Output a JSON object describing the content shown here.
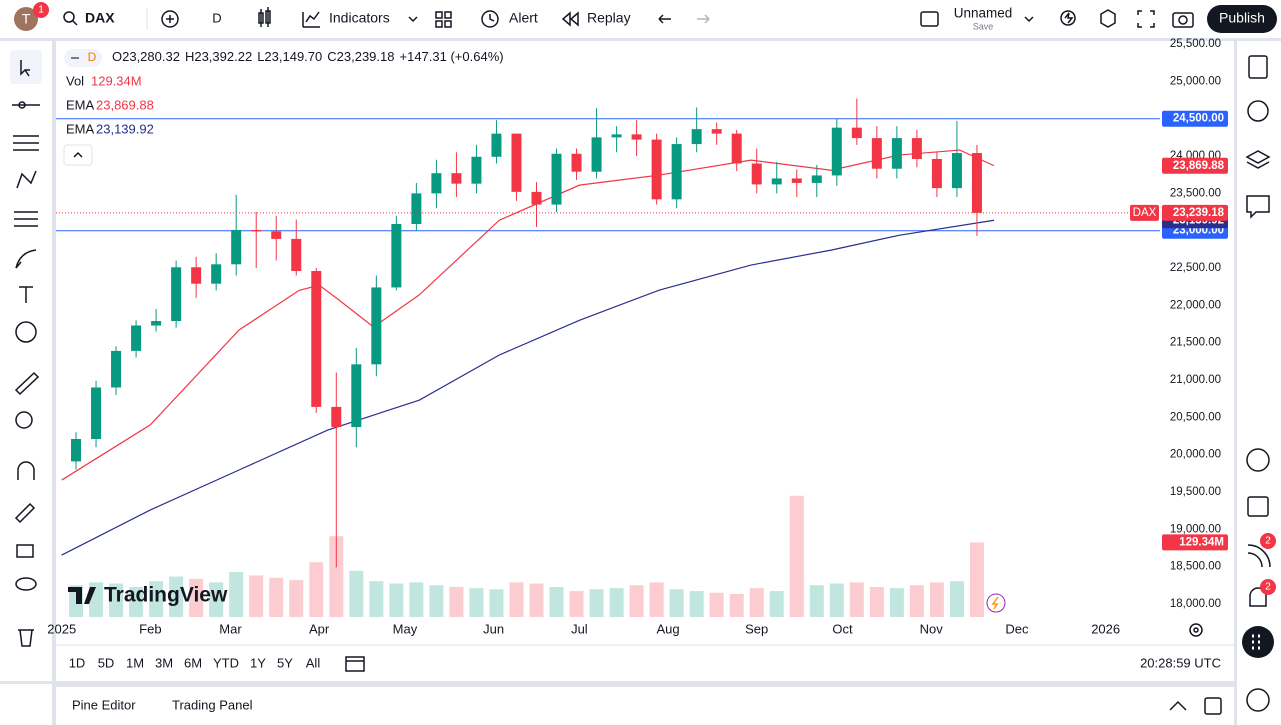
{
  "toolbar": {
    "avatar": "T",
    "badge": "1",
    "symbol": "DAX",
    "interval": "D",
    "indicators": "Indicators",
    "alert": "Alert",
    "replay": "Replay",
    "layout": "Unnamed",
    "save": "Save",
    "publish": "Publish"
  },
  "legend": {
    "interval": "D",
    "ohlc": [
      "O23,280.32",
      "H23,392.22",
      "L23,149.70",
      "C23,239.18",
      "+147.31 (+0.64%)"
    ]
  },
  "brand": "TradingView",
  "ranges": [
    "1D",
    "5D",
    "1M",
    "3M",
    "6M",
    "YTD",
    "1Y",
    "5Y",
    "All"
  ],
  "clock": "20:28:59 UTC",
  "panels": [
    "Pine Editor",
    "Trading Panel"
  ],
  "sidebar_badges": [
    "2",
    "2"
  ],
  "chart_data": {
    "type": "candlestick",
    "x": [
      6,
      13,
      20,
      27,
      34,
      41,
      48,
      55,
      62,
      69,
      76,
      83,
      90,
      97,
      104,
      111,
      118,
      125,
      132,
      139,
      146,
      153,
      160,
      167,
      174,
      181,
      188,
      195,
      202,
      209,
      216,
      223,
      230,
      237,
      244,
      251,
      258,
      265,
      272,
      279,
      286,
      293,
      300,
      307,
      314,
      321
    ],
    "open": [
      19910,
      20210,
      20900,
      21390,
      21730,
      21790,
      22510,
      22290,
      22550,
      23010,
      22990,
      22890,
      22460,
      20640,
      20370,
      21210,
      22240,
      23090,
      23500,
      23770,
      23630,
      23990,
      24300,
      23520,
      23350,
      24030,
      23790,
      24250,
      24290,
      24220,
      23420,
      24160,
      24360,
      24300,
      23900,
      23620,
      23700,
      23640,
      23740,
      24380,
      24240,
      23830,
      24240,
      23960,
      23570,
      24040
    ],
    "high": [
      20300,
      20990,
      21450,
      21800,
      21950,
      22600,
      22650,
      22700,
      23480,
      23250,
      23200,
      23150,
      22500,
      21100,
      21430,
      22400,
      23200,
      23640,
      23950,
      24050,
      24150,
      24480,
      24300,
      23650,
      24100,
      24100,
      24640,
      24400,
      24480,
      24300,
      24250,
      24650,
      24450,
      24350,
      24100,
      23920,
      23820,
      23880,
      24500,
      24770,
      24400,
      24400,
      24350,
      24050,
      24470,
      24150
    ],
    "low": [
      19800,
      20100,
      20800,
      21300,
      21650,
      21700,
      22100,
      22200,
      22400,
      22500,
      22600,
      22400,
      20560,
      18490,
      20100,
      21050,
      22200,
      23000,
      23300,
      23450,
      23500,
      23900,
      23400,
      23050,
      23250,
      23680,
      23700,
      24050,
      24000,
      23350,
      23300,
      24050,
      24150,
      23800,
      23500,
      23500,
      23450,
      23450,
      23600,
      24150,
      23700,
      23700,
      23850,
      23450,
      23450,
      22930
    ],
    "close": [
      20210,
      20900,
      21390,
      21730,
      21790,
      22510,
      22290,
      22550,
      23010,
      22990,
      22890,
      22460,
      20640,
      20370,
      21210,
      22240,
      23090,
      23500,
      23770,
      23630,
      23990,
      24300,
      23520,
      23350,
      24030,
      23790,
      24250,
      24290,
      24220,
      23420,
      24160,
      24360,
      24300,
      23900,
      23620,
      23700,
      23640,
      23740,
      24380,
      24240,
      23830,
      24240,
      23960,
      23570,
      24040,
      23239.18
    ],
    "up_color": "#089981",
    "down_color": "#f23645",
    "volume": {
      "name": "Vol",
      "values": [
        55,
        60,
        58,
        52,
        62,
        70,
        66,
        60,
        78,
        72,
        68,
        64,
        95,
        140,
        80,
        62,
        58,
        60,
        55,
        52,
        50,
        48,
        60,
        58,
        52,
        45,
        48,
        50,
        55,
        60,
        48,
        45,
        42,
        40,
        50,
        45,
        210,
        55,
        58,
        60,
        52,
        50,
        55,
        60,
        62,
        129.34
      ],
      "value_label": "129.34M",
      "lim": [
        0,
        1000
      ],
      "color": "#f23645"
    },
    "series": [
      {
        "name": "EMA",
        "color": "#f23645",
        "x": [
          1,
          32,
          63,
          84,
          91,
          98,
          110,
          126,
          154,
          182,
          210,
          242,
          270,
          294,
          315,
          327
        ],
        "values": [
          19660,
          20400,
          21670,
          22200,
          22270,
          22070,
          21710,
          22140,
          23140,
          23610,
          23745,
          23945,
          23810,
          24015,
          24080,
          23869.88
        ],
        "value_label": "23,869.88"
      },
      {
        "name": "EMA",
        "color": "#2a2e8f",
        "x": [
          1,
          32,
          63,
          94,
          126,
          154,
          182,
          210,
          242,
          270,
          294,
          327
        ],
        "values": [
          18656,
          19260,
          19795,
          20330,
          20730,
          21335,
          21800,
          22205,
          22540,
          22740,
          22940,
          23139.92
        ],
        "value_label": "23,139.92"
      }
    ],
    "last_price": {
      "name": "DAX",
      "label": "23,239.18"
    },
    "hlines": [
      {
        "value": 24500,
        "label": "24,500.00"
      },
      {
        "value": 23000,
        "label": "23,000.00"
      }
    ],
    "hline_color": "#2962ff",
    "xlim": [
      -1,
      385
    ],
    "xticks": [
      {
        "value": 1,
        "label": "2025"
      },
      {
        "value": 32,
        "label": "Feb"
      },
      {
        "value": 60,
        "label": "Mar"
      },
      {
        "value": 91,
        "label": "Apr"
      },
      {
        "value": 121,
        "label": "May"
      },
      {
        "value": 152,
        "label": "Jun"
      },
      {
        "value": 182,
        "label": "Jul"
      },
      {
        "value": 213,
        "label": "Aug"
      },
      {
        "value": 244,
        "label": "Sep"
      },
      {
        "value": 274,
        "label": "Oct"
      },
      {
        "value": 305,
        "label": "Nov"
      },
      {
        "value": 335,
        "label": "Dec"
      },
      {
        "value": 366,
        "label": "2026"
      }
    ],
    "ylim": [
      17826,
      25554
    ],
    "yticks": [
      {
        "value": 25500,
        "label": "25,500.00"
      },
      {
        "value": 25000,
        "label": "25,000.00"
      },
      {
        "value": 24500,
        "label": "24,500.00"
      },
      {
        "value": 24000,
        "label": "24,000.00"
      },
      {
        "value": 23500,
        "label": "23,500.00"
      },
      {
        "value": 23000,
        "label": "23,000.00"
      },
      {
        "value": 22500,
        "label": "22,500.00"
      },
      {
        "value": 22000,
        "label": "22,000.00"
      },
      {
        "value": 21500,
        "label": "21,500.00"
      },
      {
        "value": 21000,
        "label": "21,000.00"
      },
      {
        "value": 20500,
        "label": "20,500.00"
      },
      {
        "value": 20000,
        "label": "20,000.00"
      },
      {
        "value": 19500,
        "label": "19,500.00"
      },
      {
        "value": 19000,
        "label": "19,000.00"
      },
      {
        "value": 18500,
        "label": "18,500.00"
      },
      {
        "value": 18000,
        "label": "18,000.00"
      }
    ],
    "grid": false
  }
}
